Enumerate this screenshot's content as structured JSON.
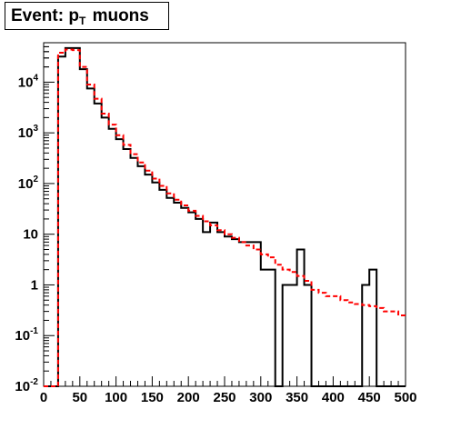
{
  "title": {
    "prefix": "Event: p",
    "subscript": "T",
    "suffix": "muons"
  },
  "chart_data": {
    "type": "histogram",
    "title": "Event: p_T muons",
    "xlabel": "",
    "ylabel": "",
    "xlim": [
      0,
      500
    ],
    "ylim": [
      0.01,
      60000
    ],
    "yscale": "log",
    "grid": false,
    "bin_edges": [
      0,
      10,
      20,
      30,
      40,
      50,
      60,
      70,
      80,
      90,
      100,
      110,
      120,
      130,
      140,
      150,
      160,
      170,
      180,
      190,
      200,
      210,
      220,
      230,
      240,
      250,
      260,
      270,
      280,
      290,
      300,
      310,
      320,
      330,
      340,
      350,
      360,
      370,
      380,
      390,
      400,
      410,
      420,
      430,
      440,
      450,
      460,
      470,
      480,
      490,
      500
    ],
    "x_tick_labels": [
      "0",
      "50",
      "100",
      "150",
      "200",
      "250",
      "300",
      "350",
      "400",
      "450",
      "500"
    ],
    "x_ticks": [
      0,
      50,
      100,
      150,
      200,
      250,
      300,
      350,
      400,
      450,
      500
    ],
    "y_tick_labels": [
      {
        "base": "10",
        "exp": "-2",
        "value": 0.01
      },
      {
        "base": "10",
        "exp": "-1",
        "value": 0.1
      },
      {
        "base": "1",
        "exp": "",
        "value": 1
      },
      {
        "base": "10",
        "exp": "",
        "value": 10
      },
      {
        "base": "10",
        "exp": "2",
        "value": 100
      },
      {
        "base": "10",
        "exp": "3",
        "value": 1000
      },
      {
        "base": "10",
        "exp": "4",
        "value": 10000
      }
    ],
    "series": [
      {
        "style": "solid",
        "color": "#000000",
        "values": [
          0,
          0,
          32000,
          47000,
          47000,
          18000,
          7500,
          3800,
          2000,
          1200,
          750,
          480,
          320,
          220,
          150,
          105,
          75,
          52,
          42,
          33,
          27,
          20,
          11,
          17,
          11,
          9,
          8,
          7,
          7,
          7,
          2,
          2,
          0,
          1,
          1,
          5,
          1,
          0,
          0,
          0,
          0,
          0,
          0,
          0,
          1,
          2,
          0,
          0,
          0,
          0
        ]
      },
      {
        "style": "dashed",
        "color": "#ff0000",
        "values": [
          0,
          0,
          38000,
          44000,
          43000,
          20000,
          9000,
          4700,
          2400,
          1450,
          900,
          580,
          380,
          260,
          180,
          125,
          90,
          64,
          48,
          37,
          29,
          23,
          18,
          15,
          12,
          10,
          8.5,
          7,
          6,
          5,
          4,
          3.5,
          2.5,
          2,
          1.8,
          1.5,
          1.2,
          0.8,
          0.7,
          0.6,
          0.6,
          0.5,
          0.45,
          0.42,
          0.4,
          0.38,
          0.35,
          0.3,
          0.3,
          0.25
        ]
      }
    ]
  }
}
